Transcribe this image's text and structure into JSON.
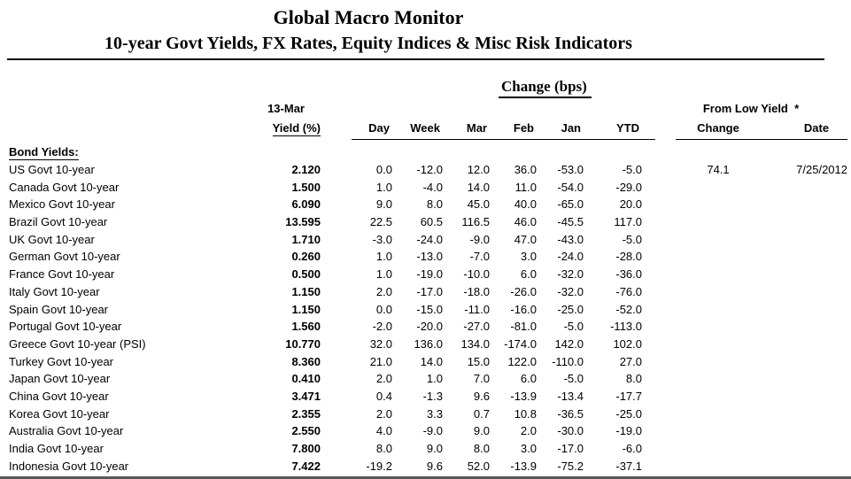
{
  "page": {
    "title": "Global Macro Monitor",
    "subtitle": "10-year Govt Yields, FX Rates, Equity Indices & Misc Risk Indicators"
  },
  "colors": {
    "text": "#000000",
    "header_rule": "#000000",
    "bottom_rule": "#595959"
  },
  "table": {
    "group_headers": {
      "change_bps": "Change (bps)",
      "from_low_yield": "From Low Yield  *"
    },
    "yield_header": {
      "line1": "13-Mar",
      "line2": "Yield (%)"
    },
    "change_columns": [
      "Day",
      "Week",
      "Mar",
      "Feb",
      "Jan",
      "YTD"
    ],
    "from_low_columns": {
      "change": "Change",
      "date": "Date"
    },
    "section_label": "Bond Yields:",
    "rows": [
      {
        "label": "US Govt 10-year",
        "yield": "2.120",
        "day": "0.0",
        "week": "-12.0",
        "mar": "12.0",
        "feb": "36.0",
        "jan": "-53.0",
        "ytd": "-5.0",
        "low_change": "74.1",
        "low_date": "7/25/2012"
      },
      {
        "label": "Canada Govt 10-year",
        "yield": "1.500",
        "day": "1.0",
        "week": "-4.0",
        "mar": "14.0",
        "feb": "11.0",
        "jan": "-54.0",
        "ytd": "-29.0",
        "low_change": "",
        "low_date": ""
      },
      {
        "label": "Mexico Govt 10-year",
        "yield": "6.090",
        "day": "9.0",
        "week": "8.0",
        "mar": "45.0",
        "feb": "40.0",
        "jan": "-65.0",
        "ytd": "20.0",
        "low_change": "",
        "low_date": ""
      },
      {
        "label": "Brazil Govt 10-year",
        "yield": "13.595",
        "day": "22.5",
        "week": "60.5",
        "mar": "116.5",
        "feb": "46.0",
        "jan": "-45.5",
        "ytd": "117.0",
        "low_change": "",
        "low_date": ""
      },
      {
        "label": "UK Govt 10-year",
        "yield": "1.710",
        "day": "-3.0",
        "week": "-24.0",
        "mar": "-9.0",
        "feb": "47.0",
        "jan": "-43.0",
        "ytd": "-5.0",
        "low_change": "",
        "low_date": ""
      },
      {
        "label": "German Govt 10-year",
        "yield": "0.260",
        "day": "1.0",
        "week": "-13.0",
        "mar": "-7.0",
        "feb": "3.0",
        "jan": "-24.0",
        "ytd": "-28.0",
        "low_change": "",
        "low_date": ""
      },
      {
        "label": "France Govt 10-year",
        "yield": "0.500",
        "day": "1.0",
        "week": "-19.0",
        "mar": "-10.0",
        "feb": "6.0",
        "jan": "-32.0",
        "ytd": "-36.0",
        "low_change": "",
        "low_date": ""
      },
      {
        "label": "Italy Govt 10-year",
        "yield": "1.150",
        "day": "2.0",
        "week": "-17.0",
        "mar": "-18.0",
        "feb": "-26.0",
        "jan": "-32.0",
        "ytd": "-76.0",
        "low_change": "",
        "low_date": ""
      },
      {
        "label": "Spain Govt 10-year",
        "yield": "1.150",
        "day": "0.0",
        "week": "-15.0",
        "mar": "-11.0",
        "feb": "-16.0",
        "jan": "-25.0",
        "ytd": "-52.0",
        "low_change": "",
        "low_date": ""
      },
      {
        "label": "Portugal Govt 10-year",
        "yield": "1.560",
        "day": "-2.0",
        "week": "-20.0",
        "mar": "-27.0",
        "feb": "-81.0",
        "jan": "-5.0",
        "ytd": "-113.0",
        "low_change": "",
        "low_date": ""
      },
      {
        "label": "Greece Govt 10-year (PSI)",
        "yield": "10.770",
        "day": "32.0",
        "week": "136.0",
        "mar": "134.0",
        "feb": "-174.0",
        "jan": "142.0",
        "ytd": "102.0",
        "low_change": "",
        "low_date": ""
      },
      {
        "label": "Turkey Govt 10-year",
        "yield": "8.360",
        "day": "21.0",
        "week": "14.0",
        "mar": "15.0",
        "feb": "122.0",
        "jan": "-110.0",
        "ytd": "27.0",
        "low_change": "",
        "low_date": ""
      },
      {
        "label": "Japan Govt 10-year",
        "yield": "0.410",
        "day": "2.0",
        "week": "1.0",
        "mar": "7.0",
        "feb": "6.0",
        "jan": "-5.0",
        "ytd": "8.0",
        "low_change": "",
        "low_date": ""
      },
      {
        "label": "China Govt 10-year",
        "yield": "3.471",
        "day": "0.4",
        "week": "-1.3",
        "mar": "9.6",
        "feb": "-13.9",
        "jan": "-13.4",
        "ytd": "-17.7",
        "low_change": "",
        "low_date": ""
      },
      {
        "label": "Korea Govt 10-year",
        "yield": "2.355",
        "day": "2.0",
        "week": "3.3",
        "mar": "0.7",
        "feb": "10.8",
        "jan": "-36.5",
        "ytd": "-25.0",
        "low_change": "",
        "low_date": ""
      },
      {
        "label": "Australia Govt 10-year",
        "yield": "2.550",
        "day": "4.0",
        "week": "-9.0",
        "mar": "9.0",
        "feb": "2.0",
        "jan": "-30.0",
        "ytd": "-19.0",
        "low_change": "",
        "low_date": ""
      },
      {
        "label": "India Govt 10-year",
        "yield": "7.800",
        "day": "8.0",
        "week": "9.0",
        "mar": "8.0",
        "feb": "3.0",
        "jan": "-17.0",
        "ytd": "-6.0",
        "low_change": "",
        "low_date": ""
      },
      {
        "label": "Indonesia Govt 10-year",
        "yield": "7.422",
        "day": "-19.2",
        "week": "9.6",
        "mar": "52.0",
        "feb": "-13.9",
        "jan": "-75.2",
        "ytd": "-37.1",
        "low_change": "",
        "low_date": ""
      }
    ]
  },
  "chart_data": {
    "type": "table",
    "title": "Global Macro Monitor",
    "subtitle": "10-year Govt Yields, FX Rates, Equity Indices & Misc Risk Indicators",
    "section": "Bond Yields:",
    "columns": [
      "13-Mar Yield (%)",
      "Change (bps) Day",
      "Change (bps) Week",
      "Change (bps) Mar",
      "Change (bps) Feb",
      "Change (bps) Jan",
      "Change (bps) YTD",
      "From Low Yield Change",
      "From Low Yield Date"
    ],
    "rows": [
      [
        "US Govt 10-year",
        2.12,
        0.0,
        -12.0,
        12.0,
        36.0,
        -53.0,
        -5.0,
        74.1,
        "7/25/2012"
      ],
      [
        "Canada Govt 10-year",
        1.5,
        1.0,
        -4.0,
        14.0,
        11.0,
        -54.0,
        -29.0,
        null,
        null
      ],
      [
        "Mexico Govt 10-year",
        6.09,
        9.0,
        8.0,
        45.0,
        40.0,
        -65.0,
        20.0,
        null,
        null
      ],
      [
        "Brazil Govt 10-year",
        13.595,
        22.5,
        60.5,
        116.5,
        46.0,
        -45.5,
        117.0,
        null,
        null
      ],
      [
        "UK Govt 10-year",
        1.71,
        -3.0,
        -24.0,
        -9.0,
        47.0,
        -43.0,
        -5.0,
        null,
        null
      ],
      [
        "German Govt 10-year",
        0.26,
        1.0,
        -13.0,
        -7.0,
        3.0,
        -24.0,
        -28.0,
        null,
        null
      ],
      [
        "France Govt 10-year",
        0.5,
        1.0,
        -19.0,
        -10.0,
        6.0,
        -32.0,
        -36.0,
        null,
        null
      ],
      [
        "Italy Govt 10-year",
        1.15,
        2.0,
        -17.0,
        -18.0,
        -26.0,
        -32.0,
        -76.0,
        null,
        null
      ],
      [
        "Spain Govt 10-year",
        1.15,
        0.0,
        -15.0,
        -11.0,
        -16.0,
        -25.0,
        -52.0,
        null,
        null
      ],
      [
        "Portugal Govt 10-year",
        1.56,
        -2.0,
        -20.0,
        -27.0,
        -81.0,
        -5.0,
        -113.0,
        null,
        null
      ],
      [
        "Greece Govt 10-year (PSI)",
        10.77,
        32.0,
        136.0,
        134.0,
        -174.0,
        142.0,
        102.0,
        null,
        null
      ],
      [
        "Turkey Govt 10-year",
        8.36,
        21.0,
        14.0,
        15.0,
        122.0,
        -110.0,
        27.0,
        null,
        null
      ],
      [
        "Japan Govt 10-year",
        0.41,
        2.0,
        1.0,
        7.0,
        6.0,
        -5.0,
        8.0,
        null,
        null
      ],
      [
        "China Govt 10-year",
        3.471,
        0.4,
        -1.3,
        9.6,
        -13.9,
        -13.4,
        -17.7,
        null,
        null
      ],
      [
        "Korea Govt 10-year",
        2.355,
        2.0,
        3.3,
        0.7,
        10.8,
        -36.5,
        -25.0,
        null,
        null
      ],
      [
        "Australia Govt 10-year",
        2.55,
        4.0,
        -9.0,
        9.0,
        2.0,
        -30.0,
        -19.0,
        null,
        null
      ],
      [
        "India Govt 10-year",
        7.8,
        8.0,
        9.0,
        8.0,
        3.0,
        -17.0,
        -6.0,
        null,
        null
      ],
      [
        "Indonesia Govt 10-year",
        7.422,
        -19.2,
        9.6,
        52.0,
        -13.9,
        -75.2,
        -37.1,
        null,
        null
      ]
    ]
  }
}
